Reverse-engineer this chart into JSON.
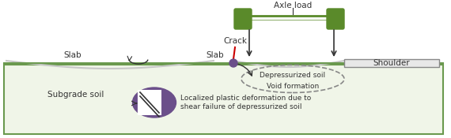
{
  "bg_color": "#ffffff",
  "subgrade_box_color": "#6a994e",
  "subgrade_box_bg": "#f0f5e8",
  "subgrade_text": "Subgrade soil",
  "slab_left_label": "Slab",
  "slab_right_label": "Slab",
  "shoulder_label": "Shoulder",
  "axle_load_label": "Axle load",
  "crack_label": "Crack",
  "depressurized_label": "Depressurized soil",
  "void_label": "Void formation",
  "localized_label": "Localized plastic deformation due to\nshear failure of depressurized soil",
  "axle_bar_color": "#5a8a2a",
  "wheel_color": "#5a8a2a",
  "slab_line_color": "#c8c8c8",
  "crack_color": "#cc0000",
  "purple_circle_color": "#6b4f8a",
  "arrow_color": "#333333",
  "shoulder_box_color": "#aaaaaa",
  "dashed_ellipse_color": "#888888",
  "font_size": 7.5,
  "small_font_size": 6.5
}
